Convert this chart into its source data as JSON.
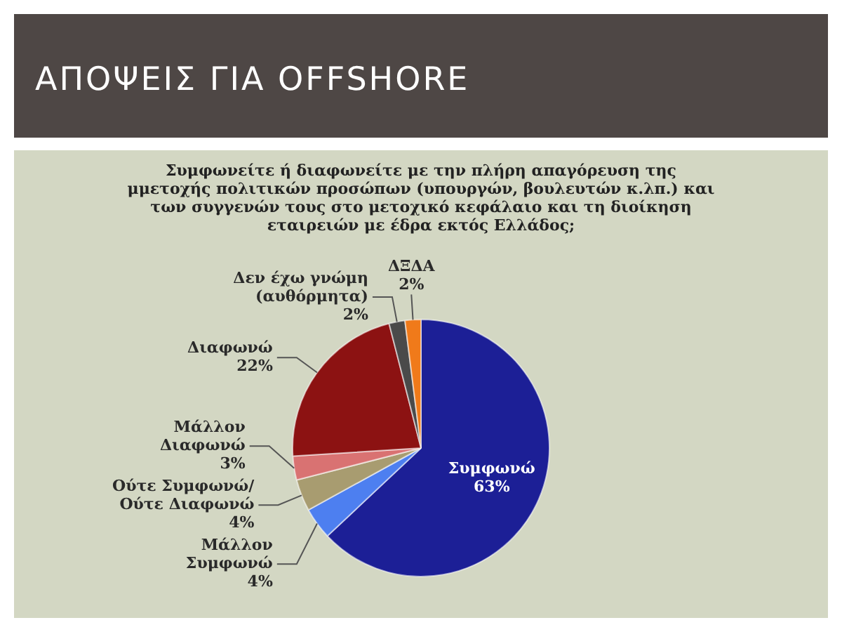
{
  "chart_data": {
    "type": "pie",
    "title": "ΑΠΟΨΕΙΣ ΓΙΑ OFFSHORE",
    "subtitle": "Συμφωνείτε ή διαφωνείτε με την πλήρη απαγόρευση της μμετοχής πολιτικών προσώπων (υπουργών, βουλευτών κ.λπ.) και των συγγενών τους στο μετοχικό κεφάλαιο και τη διοίκηση εταιρειών με έδρα εκτός Ελλάδος;",
    "categories": [
      "Συμφωνώ",
      "Μάλλον Συμφωνώ",
      "Ούτε Συμφωνώ/ Ούτε Διαφωνώ",
      "Μάλλον Διαφωνώ",
      "Διαφωνώ",
      "Δεν έχω γνώμη (αυθόρμητα)",
      "ΔΞΔΑ"
    ],
    "values": [
      63,
      4,
      4,
      3,
      22,
      2,
      2
    ],
    "colors": [
      "#1c1f96",
      "#4d7ff0",
      "#a89c70",
      "#d97272",
      "#8c1212",
      "#4a4a4a",
      "#f07a1a"
    ],
    "value_labels": [
      "63%",
      "4%",
      "4%",
      "3%",
      "22%",
      "2%",
      "2%"
    ]
  }
}
